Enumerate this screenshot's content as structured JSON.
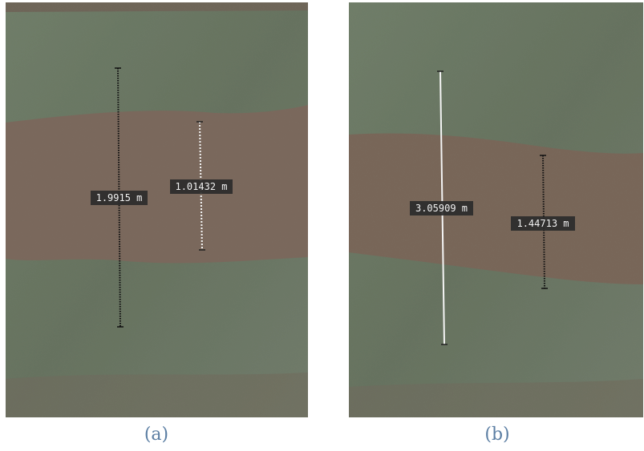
{
  "panels": [
    {
      "caption": "(a)",
      "measurements": [
        {
          "label": "1.9915 m"
        },
        {
          "label": "1.01432 m"
        }
      ]
    },
    {
      "caption": "(b)",
      "measurements": [
        {
          "label": "3.05909 m"
        },
        {
          "label": "1.44713 m"
        }
      ]
    }
  ]
}
